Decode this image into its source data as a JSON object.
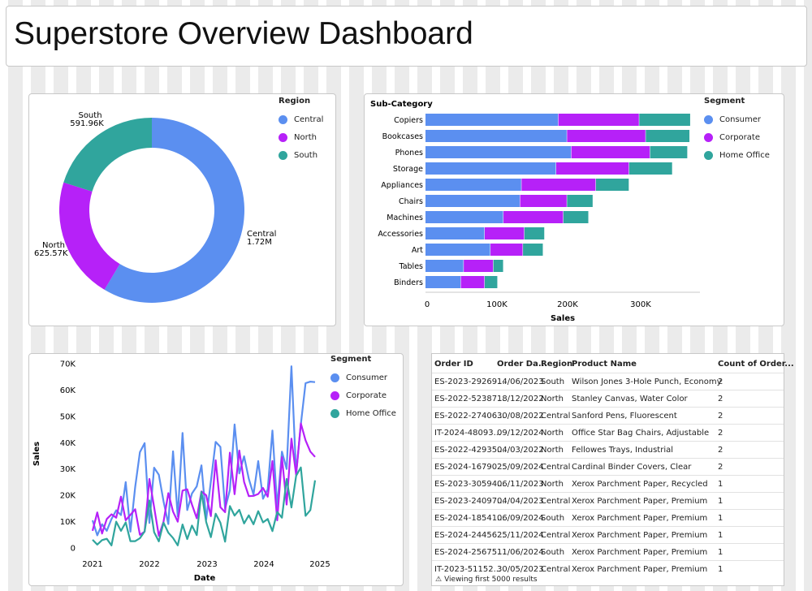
{
  "page": {
    "title": "Superstore Overview Dashboard"
  },
  "colors": {
    "consumer": "#5b8ff0",
    "corporate": "#b621f8",
    "home_office": "#30a59d",
    "central": "#5b8ff0",
    "north": "#b621f8",
    "south": "#30a59d"
  },
  "donut": {
    "legend": {
      "title": "Region",
      "items": [
        "Central",
        "North",
        "South"
      ]
    },
    "labels": {
      "south_name": "South",
      "south_value": "591.96K",
      "north_name": "North",
      "north_value": "625.57K",
      "central_name": "Central",
      "central_value": "1.72M"
    }
  },
  "bar": {
    "legend": {
      "title": "Segment",
      "items": [
        "Consumer",
        "Corporate",
        "Home Office"
      ]
    },
    "axis_title": "Sub-Category",
    "x_title": "Sales",
    "x_ticks": [
      "0",
      "100K",
      "200K",
      "300K"
    ]
  },
  "line": {
    "legend": {
      "title": "Segment",
      "items": [
        "Consumer",
        "Corporate",
        "Home Office"
      ]
    },
    "y_title": "Sales",
    "x_title": "Date",
    "y_ticks": [
      "0",
      "10K",
      "20K",
      "30K",
      "40K",
      "50K",
      "60K",
      "70K"
    ],
    "x_ticks": [
      "2021",
      "2022",
      "2023",
      "2024",
      "2025"
    ]
  },
  "table": {
    "columns": [
      "Order ID",
      "Order Da...",
      "Region",
      "Product Name",
      "Count of Order..."
    ],
    "rows": [
      [
        "ES-2023-29269...",
        "14/06/2023",
        "South",
        "Wilson Jones 3-Hole Punch, Economy",
        "2"
      ],
      [
        "ES-2022-52387...",
        "18/12/2022",
        "North",
        "Stanley Canvas, Water Color",
        "2"
      ],
      [
        "ES-2022-27406...",
        "30/08/2022",
        "Central",
        "Sanford Pens, Fluorescent",
        "2"
      ],
      [
        "IT-2024-48093...",
        "09/12/2024",
        "North",
        "Office Star Bag Chairs, Adjustable",
        "2"
      ],
      [
        "ES-2022-42935...",
        "04/03/2022",
        "North",
        "Fellowes Trays, Industrial",
        "2"
      ],
      [
        "ES-2024-16790...",
        "25/09/2024",
        "Central",
        "Cardinal Binder Covers, Clear",
        "2"
      ],
      [
        "ES-2023-30594...",
        "06/11/2023",
        "North",
        "Xerox Parchment Paper, Recycled",
        "1"
      ],
      [
        "ES-2023-24097...",
        "04/04/2023",
        "Central",
        "Xerox Parchment Paper, Premium",
        "1"
      ],
      [
        "ES-2024-18541...",
        "06/09/2024",
        "South",
        "Xerox Parchment Paper, Premium",
        "1"
      ],
      [
        "ES-2024-24456...",
        "25/11/2024",
        "Central",
        "Xerox Parchment Paper, Premium",
        "1"
      ],
      [
        "ES-2024-25675...",
        "11/06/2024",
        "South",
        "Xerox Parchment Paper, Premium",
        "1"
      ],
      [
        "IT-2023-51152...",
        "30/05/2023",
        "Central",
        "Xerox Parchment Paper, Premium",
        "1"
      ]
    ],
    "footer": "Viewing first 5000 results",
    "footer_icon": "warning-icon"
  },
  "chart_data": [
    {
      "type": "pie",
      "legend_title": "Region",
      "categories": [
        "Central",
        "North",
        "South"
      ],
      "values": [
        1720000,
        625570,
        591960
      ]
    },
    {
      "type": "bar",
      "orientation": "horizontal",
      "stacked": true,
      "categories": [
        "Copiers",
        "Bookcases",
        "Phones",
        "Storage",
        "Appliances",
        "Chairs",
        "Machines",
        "Accessories",
        "Art",
        "Tables",
        "Binders"
      ],
      "series": [
        {
          "name": "Consumer",
          "values": [
            184000,
            196000,
            202000,
            181000,
            133000,
            131000,
            108000,
            82000,
            90000,
            53000,
            49000
          ]
        },
        {
          "name": "Corporate",
          "values": [
            112000,
            109000,
            109000,
            101000,
            103000,
            65000,
            83000,
            55000,
            45000,
            41000,
            33000
          ]
        },
        {
          "name": "Home Office",
          "values": [
            71000,
            61000,
            52000,
            60000,
            46000,
            36000,
            35000,
            28000,
            28000,
            14000,
            18000
          ]
        }
      ],
      "xlabel": "Sales",
      "ylabel": "Sub-Category",
      "xlim": [
        0,
        380000
      ],
      "legend_title": "Segment"
    },
    {
      "type": "line",
      "x_range": [
        "2021-01",
        "2024-12"
      ],
      "series": [
        {
          "name": "Consumer",
          "values": [
            10500,
            4800,
            9000,
            6500,
            11000,
            14300,
            12500,
            25000,
            6200,
            23200,
            36400,
            39800,
            9500,
            30500,
            27800,
            17700,
            9100,
            36700,
            12000,
            43700,
            14400,
            20700,
            23400,
            31400,
            10800,
            25300,
            40300,
            38400,
            14900,
            22000,
            46900,
            28300,
            34800,
            26300,
            20300,
            33000,
            18700,
            22300,
            44600,
            15500,
            36600,
            30000,
            69000,
            28000,
            47000,
            62600,
            63200,
            63000
          ]
        },
        {
          "name": "Corporate",
          "values": [
            6500,
            13500,
            5500,
            11000,
            12800,
            11500,
            19500,
            10500,
            12600,
            14700,
            5000,
            6200,
            26200,
            15500,
            4600,
            10000,
            20800,
            13800,
            10000,
            21800,
            22300,
            16500,
            11300,
            21500,
            20000,
            12100,
            33300,
            15500,
            13600,
            36200,
            20400,
            37000,
            25100,
            19700,
            19800,
            20500,
            22800,
            19500,
            33000,
            10500,
            34500,
            16500,
            41500,
            27800,
            47300,
            40900,
            36600,
            34600
          ]
        },
        {
          "name": "Home Office",
          "values": [
            3100,
            1300,
            3000,
            3500,
            1000,
            10000,
            6500,
            9700,
            2600,
            2600,
            3700,
            6300,
            18000,
            6000,
            2500,
            9600,
            5800,
            3800,
            1000,
            8900,
            3400,
            8500,
            4900,
            21300,
            9900,
            4100,
            13000,
            9600,
            2400,
            15900,
            12300,
            14500,
            9300,
            12400,
            9000,
            14000,
            9700,
            11000,
            6400,
            13700,
            11500,
            26200,
            15400,
            27400,
            30600,
            12200,
            14400,
            25700
          ]
        }
      ],
      "xlabel": "Date",
      "ylabel": "Sales",
      "ylim": [
        0,
        70000
      ],
      "legend_title": "Segment"
    }
  ]
}
